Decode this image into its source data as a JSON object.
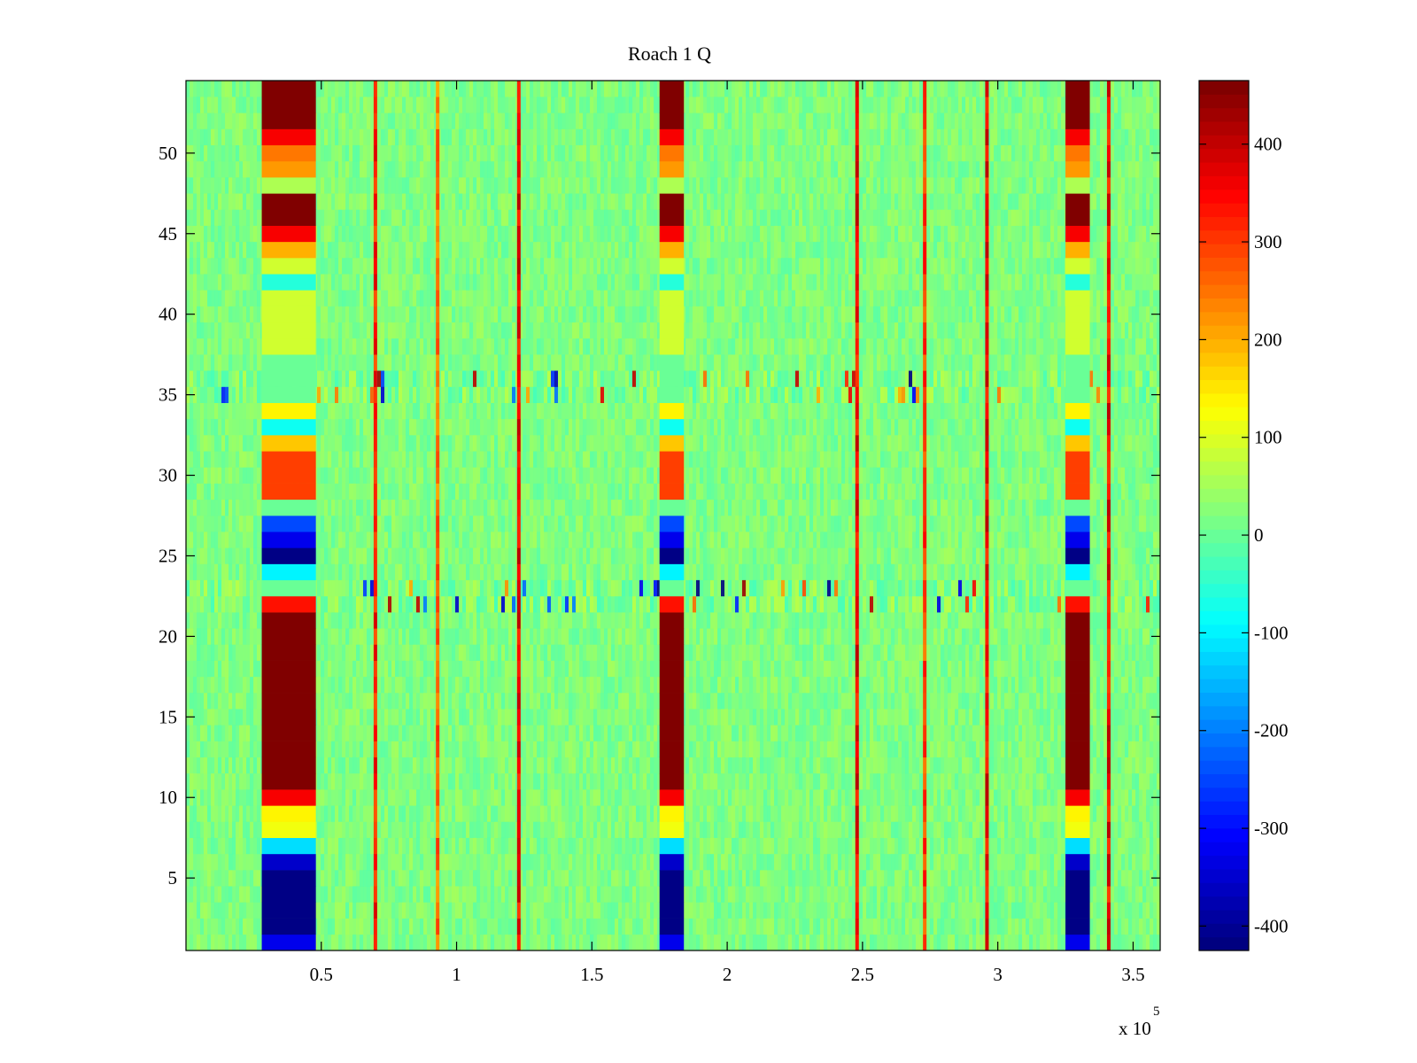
{
  "chart_data": [
    {
      "type": "heatmap",
      "title": "Roach 1 Q",
      "xlabel": "",
      "ylabel": "",
      "x_multiplier_label": "x 10",
      "x_multiplier_exponent": "5",
      "xlim": [
        0,
        360000
      ],
      "ylim": [
        0.5,
        54.5
      ],
      "xticks": [
        50000,
        100000,
        150000,
        200000,
        250000,
        300000,
        350000
      ],
      "xtick_labels": [
        "0.5",
        "1",
        "1.5",
        "2",
        "2.5",
        "3",
        "3.5"
      ],
      "yticks": [
        5,
        10,
        15,
        20,
        25,
        30,
        35,
        40,
        45,
        50
      ],
      "ytick_labels": [
        "5",
        "10",
        "15",
        "20",
        "25",
        "30",
        "35",
        "40",
        "45",
        "50"
      ],
      "rows": 54,
      "colormap": "jet",
      "clim": [
        -425,
        465
      ],
      "background_value": 20,
      "bursts": [
        {
          "x_start": 28000,
          "x_end": 48000,
          "rows": {
            "1": -330,
            "2": -420,
            "3": -420,
            "4": -420,
            "5": -420,
            "6": -360,
            "7": -120,
            "8": 120,
            "9": 140,
            "10": 360,
            "11": 465,
            "12": 465,
            "13": 465,
            "14": 465,
            "15": 465,
            "16": 465,
            "17": 465,
            "18": 465,
            "19": 465,
            "20": 465,
            "21": 465,
            "22": 340,
            "23": 0,
            "24": -100,
            "25": -420,
            "26": -330,
            "27": -250,
            "28": 0,
            "29": 300,
            "30": 300,
            "31": 300,
            "32": 180,
            "33": -80,
            "34": 140,
            "35": 0,
            "36": 0,
            "37": 0,
            "38": 90,
            "39": 90,
            "40": 90,
            "41": 90,
            "42": -60,
            "43": 90,
            "44": 200,
            "45": 360,
            "46": 465,
            "47": 465,
            "48": 60,
            "49": 220,
            "50": 250,
            "51": 360,
            "52": 465,
            "53": 465,
            "54": 465
          }
        },
        {
          "x_start": 175000,
          "x_end": 184000,
          "rows": {
            "1": -330,
            "2": -420,
            "3": -420,
            "4": -420,
            "5": -420,
            "6": -360,
            "7": -120,
            "8": 120,
            "9": 140,
            "10": 360,
            "11": 465,
            "12": 465,
            "13": 465,
            "14": 465,
            "15": 465,
            "16": 465,
            "17": 465,
            "18": 465,
            "19": 465,
            "20": 465,
            "21": 465,
            "22": 340,
            "23": 0,
            "24": -100,
            "25": -420,
            "26": -330,
            "27": -250,
            "28": 0,
            "29": 300,
            "30": 300,
            "31": 300,
            "32": 180,
            "33": -80,
            "34": 140,
            "35": 0,
            "36": 0,
            "37": 0,
            "38": 90,
            "39": 90,
            "40": 90,
            "41": 90,
            "42": -60,
            "43": 90,
            "44": 200,
            "45": 360,
            "46": 465,
            "47": 465,
            "48": 60,
            "49": 220,
            "50": 250,
            "51": 360,
            "52": 465,
            "53": 465,
            "54": 465
          }
        },
        {
          "x_start": 325000,
          "x_end": 334000,
          "rows": {
            "1": -330,
            "2": -420,
            "3": -420,
            "4": -420,
            "5": -420,
            "6": -360,
            "7": -120,
            "8": 120,
            "9": 140,
            "10": 360,
            "11": 465,
            "12": 465,
            "13": 465,
            "14": 465,
            "15": 465,
            "16": 465,
            "17": 465,
            "18": 465,
            "19": 465,
            "20": 465,
            "21": 465,
            "22": 340,
            "23": 0,
            "24": -100,
            "25": -420,
            "26": -330,
            "27": -250,
            "28": 0,
            "29": 300,
            "30": 300,
            "31": 300,
            "32": 180,
            "33": -80,
            "34": 140,
            "35": 0,
            "36": 0,
            "37": 0,
            "38": 90,
            "39": 90,
            "40": 90,
            "41": 90,
            "42": -60,
            "43": 90,
            "44": 200,
            "45": 360,
            "46": 465,
            "47": 465,
            "48": 60,
            "49": 220,
            "50": 250,
            "51": 360,
            "52": 465,
            "53": 465,
            "54": 465
          }
        }
      ],
      "vertical_lines": [
        {
          "x": 70000,
          "value": 330
        },
        {
          "x": 93000,
          "value": 260
        },
        {
          "x": 123000,
          "value": 360
        },
        {
          "x": 248000,
          "value": 360
        },
        {
          "x": 273000,
          "value": 300
        },
        {
          "x": 296000,
          "value": 360
        },
        {
          "x": 341000,
          "value": 360
        }
      ],
      "noisy_rows": [
        22,
        23,
        35,
        36
      ]
    },
    {
      "type": "colorbar",
      "colormap": "jet",
      "clim": [
        -425,
        465
      ],
      "ticks": [
        -400,
        -300,
        -200,
        -100,
        0,
        100,
        200,
        300,
        400
      ],
      "tick_labels": [
        "-400",
        "-300",
        "-200",
        "-100",
        "0",
        "100",
        "200",
        "300",
        "400"
      ]
    }
  ]
}
